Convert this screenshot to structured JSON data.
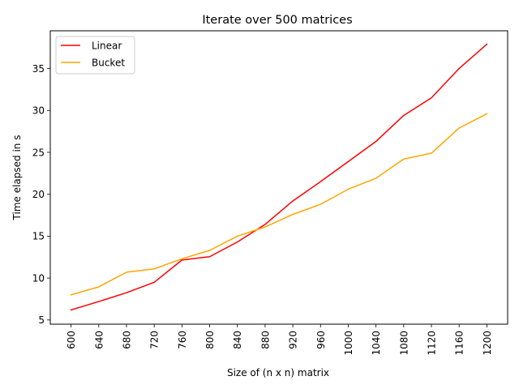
{
  "chart_data": {
    "type": "line",
    "title": "Iterate over 500 matrices",
    "xlabel": "Size of (n x n) matrix",
    "ylabel": "Time elapsed in s",
    "x": [
      600,
      640,
      680,
      720,
      760,
      800,
      840,
      880,
      920,
      960,
      1000,
      1040,
      1080,
      1120,
      1160,
      1200
    ],
    "xticks": [
      "600",
      "640",
      "680",
      "720",
      "760",
      "800",
      "840",
      "880",
      "920",
      "960",
      "1000",
      "1040",
      "1080",
      "1120",
      "1160",
      "1200"
    ],
    "yticks": [
      5,
      10,
      15,
      20,
      25,
      30,
      35
    ],
    "ylim": [
      4.5,
      39.5
    ],
    "series": [
      {
        "name": "Linear",
        "color": "#ff0000",
        "values": [
          6.2,
          7.2,
          8.25,
          9.5,
          12.15,
          12.55,
          14.3,
          16.4,
          19.2,
          21.5,
          23.9,
          26.3,
          29.4,
          31.5,
          35.0,
          37.9
        ]
      },
      {
        "name": "Bucket",
        "color": "#ffa500",
        "values": [
          8.0,
          8.95,
          10.7,
          11.1,
          12.3,
          13.3,
          15.0,
          16.1,
          17.6,
          18.8,
          20.6,
          21.9,
          24.2,
          24.9,
          27.9,
          29.6
        ]
      }
    ],
    "legend_position": "top-left",
    "grid": false
  }
}
